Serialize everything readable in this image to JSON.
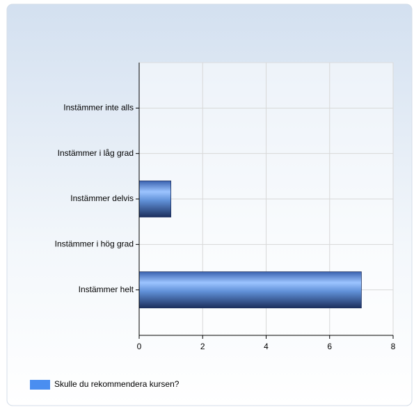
{
  "chart_data": {
    "type": "barh",
    "categories": [
      "Instämmer inte alls",
      "Instämmer i låg grad",
      "Instämmer delvis",
      "Instämmer i hög grad",
      "Instämmer helt"
    ],
    "series": [
      {
        "name": "Skulle du rekommendera kursen?",
        "color": "#4a8ef0",
        "values": [
          0,
          0,
          1,
          0,
          7
        ]
      }
    ],
    "xlim": [
      0,
      8
    ],
    "xticks": [
      0,
      2,
      4,
      6,
      8
    ],
    "grid": true,
    "legend": "bottom-left"
  }
}
